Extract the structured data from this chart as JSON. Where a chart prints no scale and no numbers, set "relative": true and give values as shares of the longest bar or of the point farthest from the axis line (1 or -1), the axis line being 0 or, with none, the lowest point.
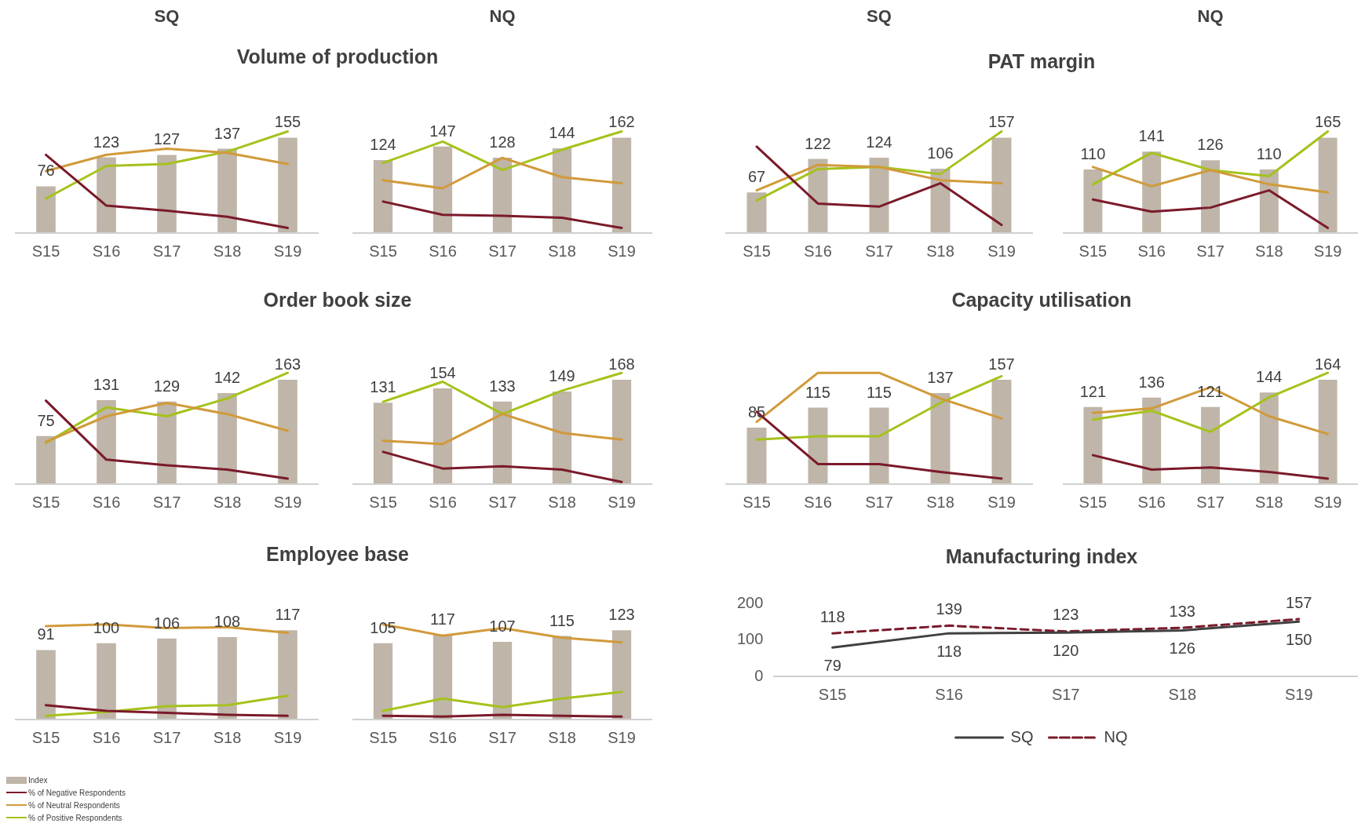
{
  "chart_data": [
    {
      "type": "bar",
      "subtitle": "SQ",
      "title": "Volume of production",
      "legend": "bottom left",
      "categories": [
        "S15",
        "S16",
        "S17",
        "S18",
        "S19"
      ],
      "series": [
        {
          "name": "Index",
          "color": "#bfb5a8",
          "values": [
            76,
            123,
            127,
            137,
            155
          ],
          "value_labels": [
            "76",
            "123",
            "127",
            "137",
            "155"
          ]
        }
      ]
    },
    {
      "type": "line",
      "relative": true,
      "legend": "bottom left",
      "categories": [
        null,
        null,
        null,
        null,
        null
      ],
      "series": [
        {
          "name": "% of Negative Respondents",
          "color": "#7b1a2a",
          "values": [
            0.77,
            0.27,
            0.22,
            0.16,
            0.05
          ]
        },
        {
          "name": "% of Neutral Respondents",
          "color": "#d19a3a",
          "values": [
            0.61,
            0.77,
            0.83,
            0.79,
            0.68
          ]
        },
        {
          "name": "% of Positive Respondents",
          "color": "#a5c21c",
          "values": [
            0.34,
            0.66,
            0.68,
            0.8,
            1
          ]
        }
      ]
    },
    {
      "type": "bar",
      "subtitle": "NQ",
      "categories": [
        "S15",
        "S16",
        "S17",
        "S18",
        "S19"
      ],
      "series": [
        {
          "color": "#bfb5a8",
          "values": [
            124,
            147,
            128,
            144,
            162
          ],
          "value_labels": [
            "124",
            "147",
            "128",
            "144",
            "162"
          ]
        }
      ]
    },
    {
      "type": "line",
      "relative": true,
      "categories": [
        null,
        null,
        null,
        null,
        null
      ],
      "series": [
        {
          "color": "#7b1a2a",
          "values": [
            0.31,
            0.18,
            0.17,
            0.15,
            0.05
          ]
        },
        {
          "color": "#d19a3a",
          "values": [
            0.52,
            0.44,
            0.74,
            0.55,
            0.49
          ]
        },
        {
          "color": "#a5c21c",
          "values": [
            0.69,
            0.9,
            0.62,
            0.82,
            1
          ]
        }
      ]
    },
    {
      "type": "bar",
      "subtitle": "SQ",
      "title": "PAT margin",
      "categories": [
        "S15",
        "S16",
        "S17",
        "S18",
        "S19"
      ],
      "series": [
        {
          "color": "#bfb5a8",
          "values": [
            67,
            122,
            124,
            106,
            157
          ],
          "value_labels": [
            "67",
            "122",
            "124",
            "106",
            "157"
          ]
        }
      ]
    },
    {
      "type": "line",
      "relative": true,
      "categories": [
        null,
        null,
        null,
        null,
        null
      ],
      "series": [
        {
          "color": "#7b1a2a",
          "values": [
            0.85,
            0.29,
            0.26,
            0.49,
            0.08
          ]
        },
        {
          "color": "#d19a3a",
          "values": [
            0.42,
            0.67,
            0.65,
            0.52,
            0.49
          ]
        },
        {
          "color": "#a5c21c",
          "values": [
            0.32,
            0.63,
            0.65,
            0.58,
            1
          ]
        }
      ]
    },
    {
      "type": "bar",
      "subtitle": "NQ",
      "categories": [
        "S15",
        "S16",
        "S17",
        "S18",
        "S19"
      ],
      "series": [
        {
          "color": "#bfb5a8",
          "values": [
            110,
            141,
            126,
            110,
            165
          ],
          "value_labels": [
            "110",
            "141",
            "126",
            "110",
            "165"
          ]
        }
      ]
    },
    {
      "type": "line",
      "relative": true,
      "categories": [
        null,
        null,
        null,
        null,
        null
      ],
      "series": [
        {
          "color": "#7b1a2a",
          "values": [
            0.33,
            0.21,
            0.25,
            0.42,
            0.05
          ]
        },
        {
          "color": "#d19a3a",
          "values": [
            0.65,
            0.46,
            0.62,
            0.48,
            0.4
          ]
        },
        {
          "color": "#a5c21c",
          "values": [
            0.48,
            0.79,
            0.62,
            0.56,
            1
          ]
        }
      ]
    },
    {
      "type": "bar",
      "title": "Order book size",
      "categories": [
        "S15",
        "S16",
        "S17",
        "S18",
        "S19"
      ],
      "series": [
        {
          "color": "#bfb5a8",
          "values": [
            75,
            131,
            129,
            142,
            163
          ],
          "value_labels": [
            "75",
            "131",
            "129",
            "142",
            "163"
          ]
        }
      ]
    },
    {
      "type": "line",
      "relative": true,
      "categories": [
        null,
        null,
        null,
        null,
        null
      ],
      "series": [
        {
          "color": "#7b1a2a",
          "values": [
            0.75,
            0.22,
            0.17,
            0.13,
            0.05
          ]
        },
        {
          "color": "#d19a3a",
          "values": [
            0.38,
            0.61,
            0.73,
            0.63,
            0.48
          ]
        },
        {
          "color": "#a5c21c",
          "values": [
            0.37,
            0.69,
            0.61,
            0.77,
            1
          ]
        }
      ]
    },
    {
      "type": "bar",
      "categories": [
        "S15",
        "S16",
        "S17",
        "S18",
        "S19"
      ],
      "series": [
        {
          "color": "#bfb5a8",
          "values": [
            131,
            154,
            133,
            149,
            168
          ],
          "value_labels": [
            "131",
            "154",
            "133",
            "149",
            "168"
          ]
        }
      ]
    },
    {
      "type": "line",
      "relative": true,
      "categories": [
        null,
        null,
        null,
        null,
        null
      ],
      "series": [
        {
          "color": "#7b1a2a",
          "values": [
            0.29,
            0.14,
            0.16,
            0.13,
            0.02
          ]
        },
        {
          "color": "#d19a3a",
          "values": [
            0.39,
            0.36,
            0.63,
            0.46,
            0.4
          ]
        },
        {
          "color": "#a5c21c",
          "values": [
            0.74,
            0.92,
            0.63,
            0.84,
            1
          ]
        }
      ]
    },
    {
      "type": "bar",
      "title": "Capacity utilisation",
      "categories": [
        "S15",
        "S16",
        "S17",
        "S18",
        "S19"
      ],
      "series": [
        {
          "color": "#bfb5a8",
          "values": [
            85,
            115,
            115,
            137,
            157
          ],
          "value_labels": [
            "85",
            "115",
            "115",
            "137",
            "157"
          ]
        }
      ]
    },
    {
      "type": "line",
      "relative": true,
      "categories": [
        null,
        null,
        null,
        null,
        null
      ],
      "series": [
        {
          "color": "#7b1a2a",
          "values": [
            0.65,
            0.18,
            0.18,
            0.11,
            0.05
          ]
        },
        {
          "color": "#d19a3a",
          "values": [
            0.56,
            1,
            1,
            0.77,
            0.59
          ]
        },
        {
          "color": "#a5c21c",
          "values": [
            0.4,
            0.43,
            0.43,
            0.73,
            0.97
          ]
        }
      ]
    },
    {
      "type": "bar",
      "categories": [
        "S15",
        "S16",
        "S17",
        "S18",
        "S19"
      ],
      "series": [
        {
          "color": "#bfb5a8",
          "values": [
            121,
            136,
            121,
            144,
            164
          ],
          "value_labels": [
            "121",
            "136",
            "121",
            "144",
            "164"
          ]
        }
      ]
    },
    {
      "type": "line",
      "relative": true,
      "categories": [
        null,
        null,
        null,
        null,
        null
      ],
      "series": [
        {
          "color": "#7b1a2a",
          "values": [
            0.26,
            0.13,
            0.15,
            0.11,
            0.05
          ]
        },
        {
          "color": "#d19a3a",
          "values": [
            0.64,
            0.68,
            0.87,
            0.61,
            0.45
          ]
        },
        {
          "color": "#a5c21c",
          "values": [
            0.58,
            0.66,
            0.47,
            0.78,
            1
          ]
        }
      ]
    },
    {
      "type": "bar",
      "title": "Employee base",
      "categories": [
        "S15",
        "S16",
        "S17",
        "S18",
        "S19"
      ],
      "series": [
        {
          "color": "#bfb5a8",
          "values": [
            91,
            100,
            106,
            108,
            117
          ],
          "value_labels": [
            "91",
            "100",
            "106",
            "108",
            "117"
          ]
        }
      ]
    },
    {
      "type": "line",
      "relative": true,
      "categories": [
        null,
        null,
        null,
        null,
        null
      ],
      "series": [
        {
          "color": "#7b1a2a",
          "values": [
            0.15,
            0.09,
            0.07,
            0.05,
            0.04
          ]
        },
        {
          "color": "#d19a3a",
          "values": [
            0.98,
            1,
            0.96,
            0.97,
            0.91
          ]
        },
        {
          "color": "#a5c21c",
          "values": [
            0.04,
            0.08,
            0.14,
            0.15,
            0.25
          ]
        }
      ]
    },
    {
      "type": "bar",
      "categories": [
        "S15",
        "S16",
        "S17",
        "S18",
        "S19"
      ],
      "series": [
        {
          "color": "#bfb5a8",
          "values": [
            105,
            117,
            107,
            115,
            123
          ],
          "value_labels": [
            "105",
            "117",
            "107",
            "115",
            "123"
          ]
        }
      ]
    },
    {
      "type": "line",
      "relative": true,
      "categories": [
        null,
        null,
        null,
        null,
        null
      ],
      "series": [
        {
          "color": "#7b1a2a",
          "values": [
            0.04,
            0.03,
            0.05,
            0.04,
            0.03
          ]
        },
        {
          "color": "#d19a3a",
          "values": [
            1,
            0.88,
            0.96,
            0.86,
            0.81
          ]
        },
        {
          "color": "#a5c21c",
          "values": [
            0.09,
            0.22,
            0.13,
            0.22,
            0.29
          ]
        }
      ]
    },
    {
      "type": "line",
      "title": "Manufacturing index",
      "categories": [
        "S15",
        "S16",
        "S17",
        "S18",
        "S19"
      ],
      "ylim": [
        0,
        200
      ],
      "yticks": [
        0,
        100,
        200
      ],
      "data_labels": true,
      "legend": "bottom",
      "marker": "none",
      "series": [
        {
          "name": "SQ",
          "color": "#404040",
          "line_style": "solid",
          "values": [
            79,
            118,
            120,
            126,
            150
          ]
        },
        {
          "name": "NQ",
          "color": "#7b1a2a",
          "line_style": "dashed",
          "values": [
            118,
            139,
            123,
            133,
            157
          ]
        }
      ]
    }
  ]
}
